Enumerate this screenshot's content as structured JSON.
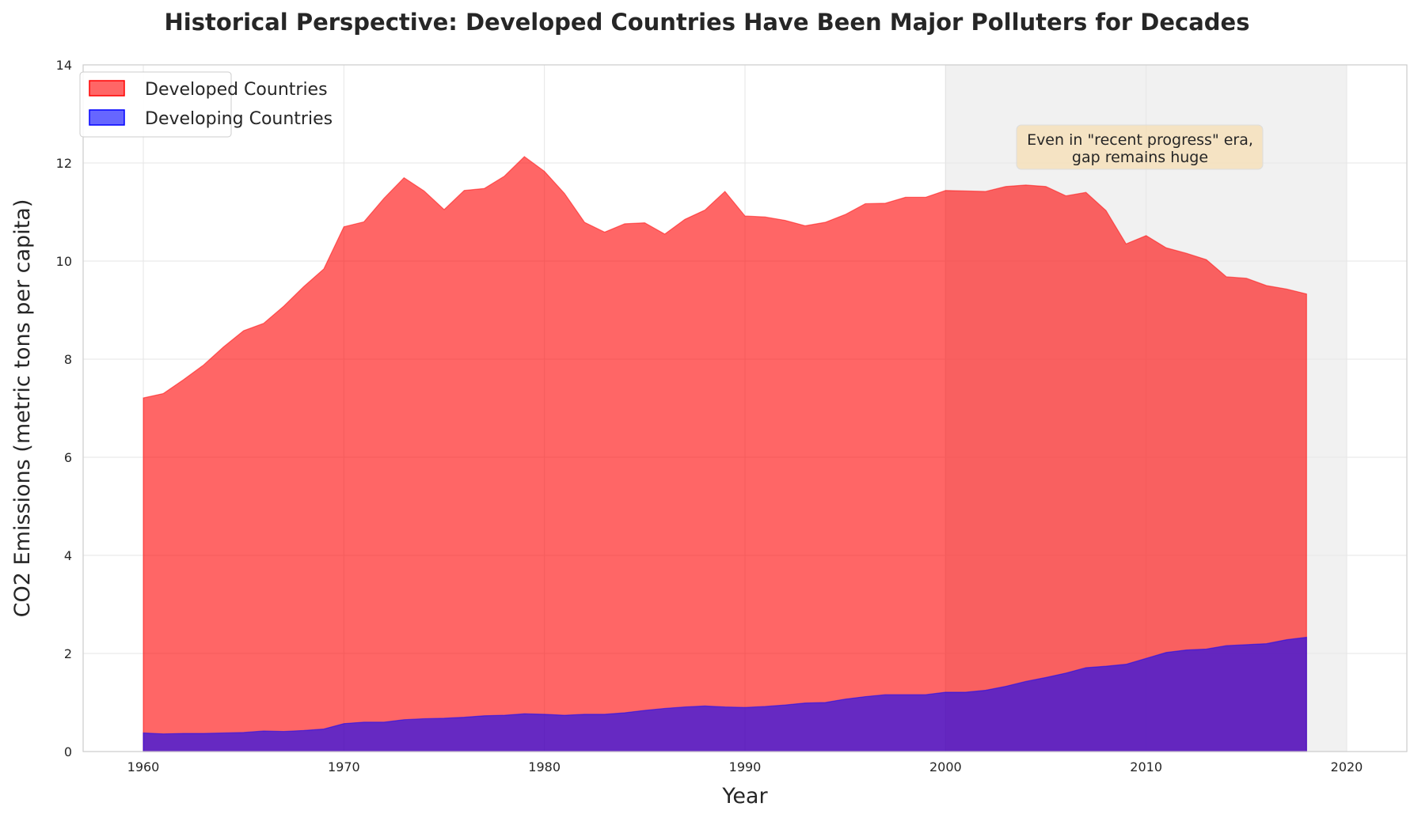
{
  "chart_data": {
    "type": "area",
    "title": "Historical Perspective: Developed Countries Have Been Major Polluters for Decades",
    "xlabel": "Year",
    "ylabel": "CO2 Emissions (metric tons per capita)",
    "xlim": [
      1957,
      2023
    ],
    "ylim": [
      0,
      14
    ],
    "xticks": [
      "1960",
      "1970",
      "1980",
      "1990",
      "2000",
      "2010",
      "2020"
    ],
    "yticks": [
      "0",
      "2",
      "4",
      "6",
      "8",
      "10",
      "12",
      "14"
    ],
    "grid": true,
    "legend_position": "top-left",
    "highlight_span": [
      2000,
      2020
    ],
    "x": [
      1960,
      1961,
      1962,
      1963,
      1964,
      1965,
      1966,
      1967,
      1968,
      1969,
      1970,
      1971,
      1972,
      1973,
      1974,
      1975,
      1976,
      1977,
      1978,
      1979,
      1980,
      1981,
      1982,
      1983,
      1984,
      1985,
      1986,
      1987,
      1988,
      1989,
      1990,
      1991,
      1992,
      1993,
      1994,
      1995,
      1996,
      1997,
      1998,
      1999,
      2000,
      2001,
      2002,
      2003,
      2004,
      2005,
      2006,
      2007,
      2008,
      2009,
      2010,
      2011,
      2012,
      2013,
      2014,
      2015,
      2016,
      2017,
      2018
    ],
    "series": [
      {
        "name": "Developed Countries",
        "color": "#ff0000",
        "values": [
          7.21,
          7.3,
          7.58,
          7.88,
          8.25,
          8.58,
          8.73,
          9.08,
          9.48,
          9.84,
          10.7,
          10.8,
          11.28,
          11.7,
          11.43,
          11.05,
          11.44,
          11.48,
          11.73,
          12.13,
          11.83,
          11.38,
          10.79,
          10.59,
          10.76,
          10.78,
          10.55,
          10.85,
          11.04,
          11.42,
          10.92,
          10.9,
          10.83,
          10.72,
          10.79,
          10.95,
          11.17,
          11.18,
          11.3,
          11.3,
          11.44,
          11.43,
          11.42,
          11.52,
          11.55,
          11.52,
          11.33,
          11.4,
          11.03,
          10.35,
          10.52,
          10.27,
          10.16,
          10.03,
          9.68,
          9.65,
          9.5,
          9.43,
          9.33
        ]
      },
      {
        "name": "Developing Countries",
        "color": "#0000ff",
        "values": [
          0.38,
          0.36,
          0.37,
          0.37,
          0.38,
          0.39,
          0.42,
          0.41,
          0.43,
          0.46,
          0.57,
          0.6,
          0.6,
          0.65,
          0.67,
          0.68,
          0.7,
          0.73,
          0.74,
          0.77,
          0.76,
          0.74,
          0.76,
          0.76,
          0.79,
          0.84,
          0.88,
          0.91,
          0.93,
          0.91,
          0.9,
          0.92,
          0.95,
          0.99,
          1.0,
          1.07,
          1.12,
          1.16,
          1.16,
          1.16,
          1.21,
          1.21,
          1.25,
          1.33,
          1.43,
          1.51,
          1.6,
          1.71,
          1.74,
          1.78,
          1.9,
          2.02,
          2.07,
          2.09,
          2.16,
          2.18,
          2.2,
          2.28,
          2.33
        ]
      }
    ],
    "annotation": {
      "text_line1": "Even in \"recent progress\" era,",
      "text_line2": "gap remains huge",
      "x": 2010,
      "y": 12.35,
      "box_color": "#f5deb3"
    }
  }
}
